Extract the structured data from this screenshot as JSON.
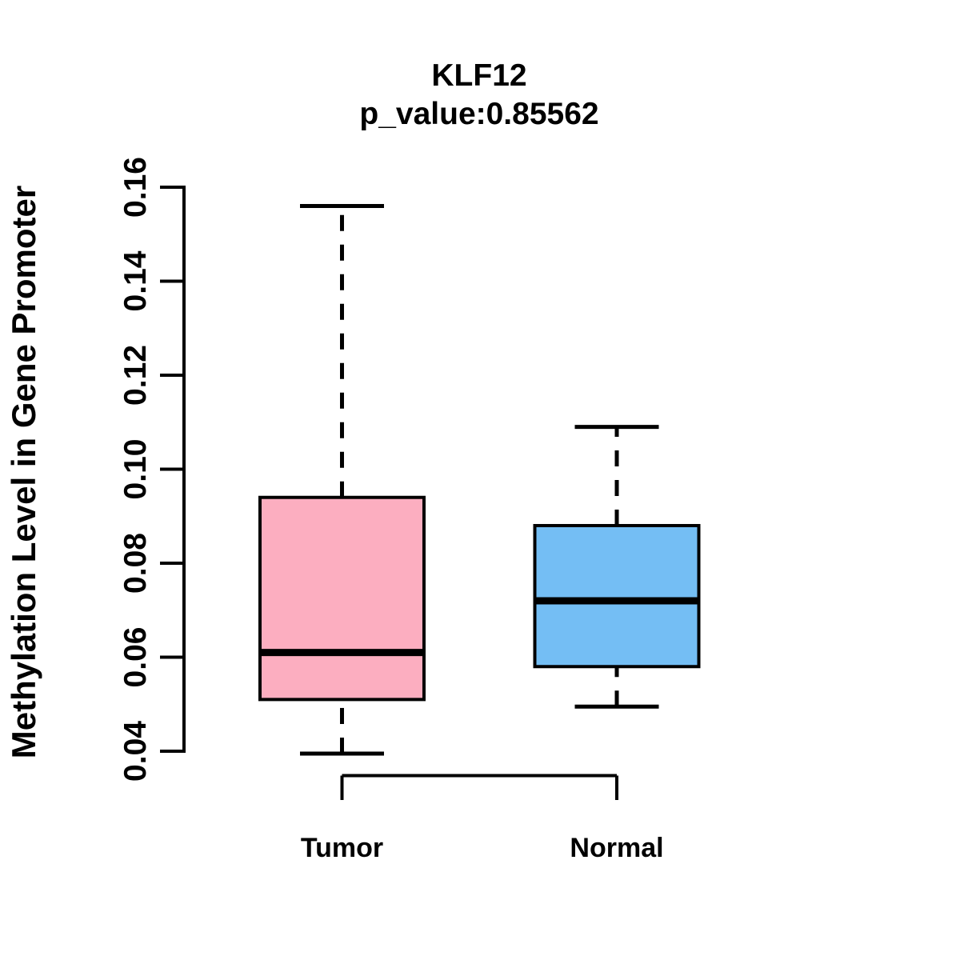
{
  "figure": {
    "title": "KLF12",
    "subtitle": "p_value:0.85562",
    "y_axis_label": "Methylation Level in Gene Promoter",
    "x_group_labels": [
      "Tumor",
      "Normal"
    ]
  },
  "chart_data": {
    "type": "boxplot",
    "title": "KLF12",
    "subtitle": "p_value:0.85562",
    "xlabel": "",
    "ylabel": "Methylation Level in Gene Promoter",
    "ylim": [
      0.04,
      0.16
    ],
    "yticks": [
      0.04,
      0.06,
      0.08,
      0.1,
      0.12,
      0.14,
      0.16
    ],
    "grid": false,
    "legend": "none",
    "groups": [
      {
        "label": "Tumor",
        "color": "#FCAEC0",
        "whisker_low": 0.0395,
        "q1": 0.051,
        "median": 0.061,
        "q3": 0.094,
        "whisker_high": 0.156
      },
      {
        "label": "Normal",
        "color": "#74BEF4",
        "whisker_low": 0.0495,
        "q1": 0.058,
        "median": 0.072,
        "q3": 0.088,
        "whisker_high": 0.109
      }
    ],
    "colors": {
      "stroke": "#000000",
      "background": "#FFFFFF"
    }
  }
}
